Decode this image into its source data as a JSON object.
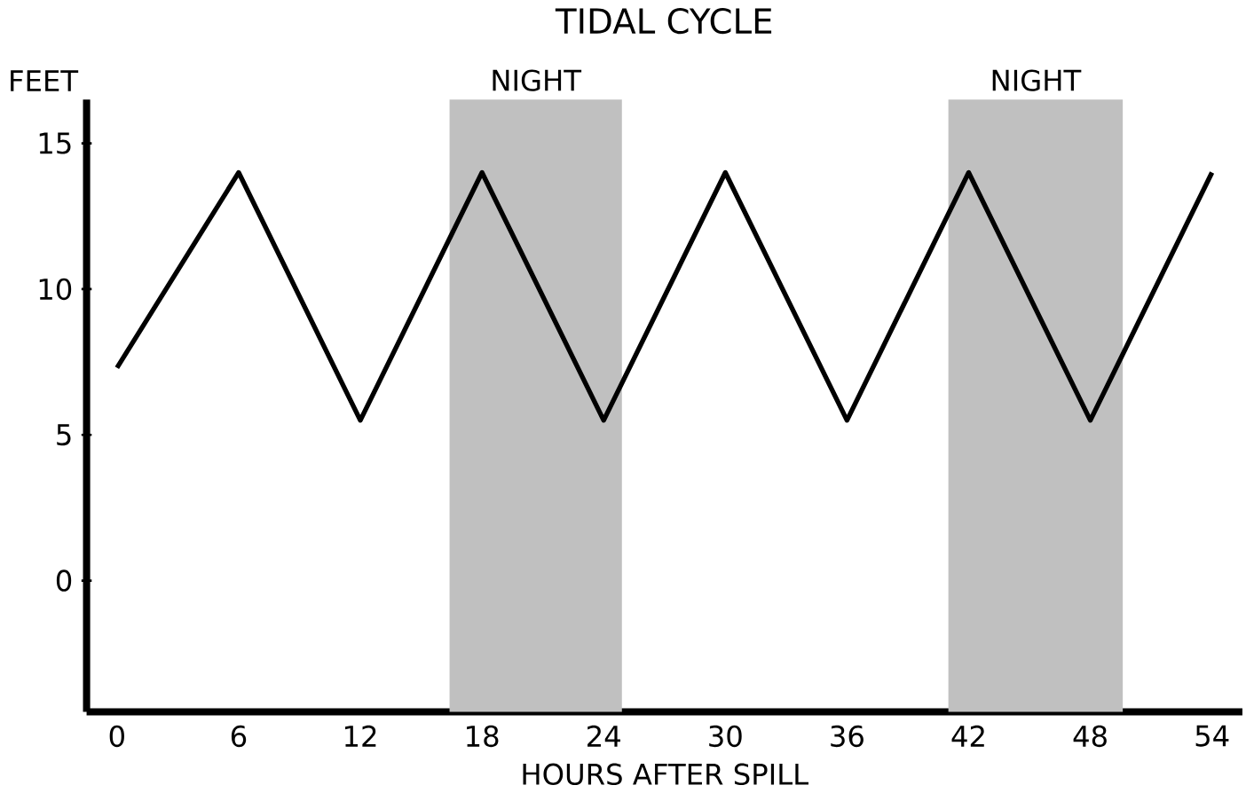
{
  "chart_data": {
    "type": "line",
    "title": "TIDAL CYCLE",
    "xlabel": "HOURS AFTER SPILL",
    "ylabel": "FEET",
    "x": [
      0,
      6,
      12,
      18,
      24,
      30,
      36,
      42,
      48,
      54
    ],
    "series": [
      {
        "color": "#000000",
        "values": [
          7.3,
          14,
          5.5,
          14,
          5.5,
          14,
          5.5,
          14,
          5.5,
          14
        ]
      }
    ],
    "xlim": [
      -1.5,
      55.5
    ],
    "ylim": [
      -4.5,
      16.5
    ],
    "xticks": [
      0,
      6,
      12,
      18,
      24,
      30,
      36,
      42,
      48,
      54
    ],
    "yticks": [
      0,
      5,
      10,
      15
    ],
    "bands": [
      {
        "axis": "x",
        "from": 16.4,
        "to": 24.9,
        "label": "NIGHT",
        "color": "#c0c0c0"
      },
      {
        "axis": "x",
        "from": 41,
        "to": 49.6,
        "label": "NIGHT",
        "color": "#c0c0c0"
      }
    ],
    "grid": false,
    "marker": "none",
    "line_style": "solid"
  }
}
